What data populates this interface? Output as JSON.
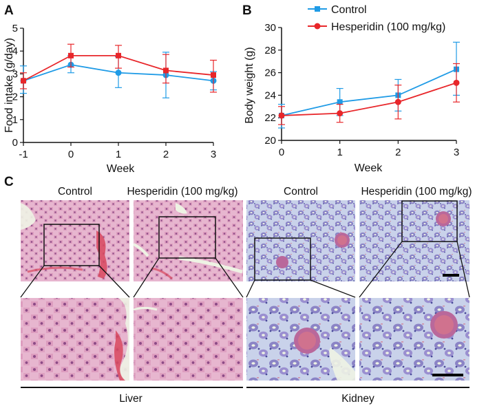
{
  "colors": {
    "control": "#1f9be6",
    "hesperidin": "#e8262a",
    "liver_bg": "#e7b6cf",
    "liver_cell": "#cf86ad",
    "liver_nucleus": "#8c4a86",
    "kidney_bg": "#c4cde8",
    "kidney_tubule": "#8b84c6",
    "kidney_nucleus": "#4a4a9a",
    "vessel": "#d8485e",
    "lumen": "#eef3e4"
  },
  "panels": {
    "a_letter": "A",
    "b_letter": "B",
    "c_letter": "C"
  },
  "legend": {
    "control": "Control",
    "hesperidin": "Hesperidin (100 mg/kg)"
  },
  "histology": {
    "labels": [
      "Control",
      "Hesperidin (100 mg/kg)",
      "Control",
      "Hesperidin (100 mg/kg)"
    ],
    "liver": "Liver",
    "kidney": "Kidney"
  },
  "chart_data": [
    {
      "panel": "A",
      "type": "line",
      "title": "",
      "xlabel": "Week",
      "ylabel": "Food intake (g/day)",
      "x": [
        -1,
        0,
        1,
        2,
        3
      ],
      "xlim": [
        -1,
        3
      ],
      "ylim": [
        0,
        5
      ],
      "xticks": [
        "-1",
        "0",
        "1",
        "2",
        "3"
      ],
      "yticks": [
        "0",
        "1",
        "2",
        "3",
        "4",
        "5"
      ],
      "series": [
        {
          "name": "Control",
          "color": "#1f9be6",
          "marker": "circle",
          "values": [
            2.7,
            3.4,
            3.05,
            2.95,
            2.7
          ],
          "err_low": [
            2.15,
            3.05,
            2.4,
            1.95,
            2.3
          ],
          "err_high": [
            3.35,
            3.8,
            3.75,
            3.95,
            3.1
          ]
        },
        {
          "name": "Hesperidin (100 mg/kg)",
          "color": "#e8262a",
          "marker": "square",
          "values": [
            2.7,
            3.8,
            3.8,
            3.15,
            2.95
          ],
          "err_low": [
            2.35,
            3.3,
            3.25,
            2.6,
            2.2
          ],
          "err_high": [
            3.05,
            4.3,
            4.25,
            3.85,
            3.6
          ]
        }
      ]
    },
    {
      "panel": "B",
      "type": "line",
      "title": "",
      "xlabel": "Week",
      "ylabel": "Body weight (g)",
      "x": [
        0,
        1,
        2,
        3
      ],
      "xlim": [
        0,
        3
      ],
      "ylim": [
        20,
        30
      ],
      "xticks": [
        "0",
        "1",
        "2",
        "3"
      ],
      "yticks": [
        "20",
        "22",
        "24",
        "26",
        "28",
        "30"
      ],
      "legend_position": "top",
      "series": [
        {
          "name": "Control",
          "color": "#1f9be6",
          "marker": "square",
          "values": [
            22.2,
            23.4,
            24.0,
            26.3
          ],
          "err_low": [
            21.1,
            22.2,
            22.6,
            24.0
          ],
          "err_high": [
            23.2,
            24.6,
            25.4,
            28.7
          ]
        },
        {
          "name": "Hesperidin (100 mg/kg)",
          "color": "#e8262a",
          "marker": "circle",
          "values": [
            22.2,
            22.4,
            23.4,
            25.1
          ],
          "err_low": [
            21.4,
            21.6,
            21.9,
            23.4
          ],
          "err_high": [
            23.0,
            23.2,
            24.9,
            26.8
          ]
        }
      ]
    }
  ]
}
